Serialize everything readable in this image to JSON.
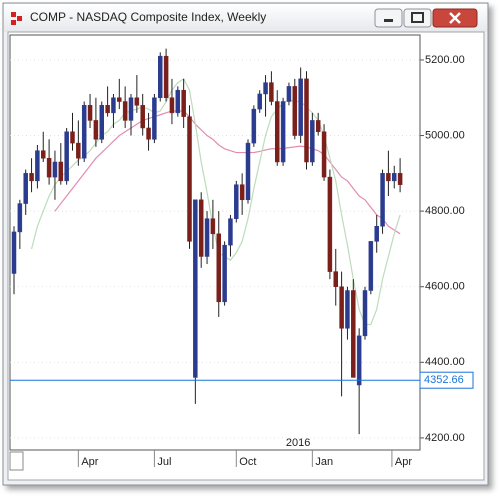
{
  "chart_data": {
    "type": "candlestick",
    "title": "COMP - NASDAQ Composite Index, Weekly",
    "up_color": "#2b3c8f",
    "down_color": "#7b1f1a",
    "ylim": [
      4168,
      5266
    ],
    "yticks": [
      {
        "value": 4200,
        "label": "4200.00"
      },
      {
        "value": 4400,
        "label": "4400.00"
      },
      {
        "value": 4600,
        "label": "4600.00"
      },
      {
        "value": 4800,
        "label": "4800.00"
      },
      {
        "value": 5000,
        "label": "5000.00"
      },
      {
        "value": 5200,
        "label": "5200.00"
      }
    ],
    "grid": true,
    "xticks": [
      {
        "value": 11,
        "label": "Apr"
      },
      {
        "value": 24,
        "label": "Jul"
      },
      {
        "value": 38,
        "label": "Oct"
      },
      {
        "value": 51,
        "label": "Jan"
      },
      {
        "value": 64.6,
        "label": "Apr"
      }
    ],
    "year_label": {
      "value": 51,
      "label": "2016"
    },
    "hline": {
      "value": 4352.66,
      "color": "#1a73d9"
    },
    "ohlc": [
      [
        4635,
        4760,
        4580,
        4745
      ],
      [
        4745,
        4830,
        4700,
        4820
      ],
      [
        4820,
        4910,
        4790,
        4900
      ],
      [
        4900,
        4940,
        4850,
        4880
      ],
      [
        4880,
        4975,
        4860,
        4960
      ],
      [
        4960,
        5010,
        4930,
        4940
      ],
      [
        4940,
        4990,
        4870,
        4890
      ],
      [
        4890,
        4960,
        4830,
        4930
      ],
      [
        4930,
        4980,
        4870,
        4880
      ],
      [
        4880,
        5020,
        4870,
        5010
      ],
      [
        5010,
        5060,
        4960,
        4980
      ],
      [
        4980,
        5040,
        4920,
        4940
      ],
      [
        4940,
        5090,
        4930,
        5080
      ],
      [
        5080,
        5110,
        5020,
        5040
      ],
      [
        5040,
        5100,
        4970,
        4990
      ],
      [
        4990,
        5090,
        4980,
        5080
      ],
      [
        5080,
        5130,
        5050,
        5060
      ],
      [
        5060,
        5110,
        5020,
        5100
      ],
      [
        5100,
        5150,
        5070,
        5090
      ],
      [
        5090,
        5130,
        5020,
        5040
      ],
      [
        5040,
        5110,
        5000,
        5100
      ],
      [
        5100,
        5160,
        5060,
        5080
      ],
      [
        5080,
        5110,
        5000,
        5020
      ],
      [
        5020,
        5060,
        4960,
        4990
      ],
      [
        4990,
        5110,
        4980,
        5100
      ],
      [
        5100,
        5220,
        5090,
        5210
      ],
      [
        5210,
        5230,
        5090,
        5100
      ],
      [
        5100,
        5150,
        5030,
        5060
      ],
      [
        5060,
        5130,
        5050,
        5120
      ],
      [
        5120,
        5150,
        5020,
        5050
      ],
      [
        5050,
        5080,
        4700,
        4720
      ],
      [
        4360,
        4830,
        4290,
        4830
      ],
      [
        4830,
        4850,
        4650,
        4680
      ],
      [
        4680,
        4800,
        4660,
        4780
      ],
      [
        4780,
        4830,
        4700,
        4740
      ],
      [
        4740,
        4800,
        4520,
        4560
      ],
      [
        4560,
        4720,
        4550,
        4710
      ],
      [
        4710,
        4790,
        4680,
        4780
      ],
      [
        4780,
        4880,
        4770,
        4870
      ],
      [
        4870,
        4900,
        4790,
        4830
      ],
      [
        4830,
        4990,
        4820,
        4980
      ],
      [
        4980,
        5080,
        4970,
        5070
      ],
      [
        5070,
        5120,
        5060,
        5110
      ],
      [
        5110,
        5160,
        5050,
        5140
      ],
      [
        5140,
        5170,
        5080,
        5090
      ],
      [
        5090,
        5120,
        4920,
        4930
      ],
      [
        4930,
        5100,
        4920,
        5090
      ],
      [
        5090,
        5140,
        5080,
        5130
      ],
      [
        5130,
        5150,
        4990,
        5000
      ],
      [
        5000,
        5180,
        4980,
        5150
      ],
      [
        5150,
        5170,
        4910,
        4930
      ],
      [
        4930,
        5060,
        4920,
        5040
      ],
      [
        5040,
        5060,
        5000,
        5010
      ],
      [
        5010,
        5030,
        4880,
        4890
      ],
      [
        4890,
        4910,
        4620,
        4640
      ],
      [
        4640,
        4700,
        4550,
        4600
      ],
      [
        4600,
        4640,
        4310,
        4490
      ],
      [
        4490,
        4600,
        4460,
        4590
      ],
      [
        4590,
        4620,
        4360,
        4360
      ],
      [
        4340,
        4490,
        4210,
        4470
      ],
      [
        4470,
        4600,
        4460,
        4590
      ],
      [
        4590,
        4720,
        4580,
        4720
      ],
      [
        4720,
        4790,
        4690,
        4760
      ],
      [
        4760,
        4910,
        4740,
        4900
      ],
      [
        4900,
        4960,
        4840,
        4880
      ],
      [
        4880,
        4920,
        4860,
        4900
      ],
      [
        4900,
        4940,
        4850,
        4870
      ]
    ],
    "series": [
      {
        "color": "#e48bb0",
        "values": [
          null,
          null,
          null,
          null,
          null,
          null,
          null,
          4800,
          4820,
          4840,
          4860,
          4880,
          4900,
          4920,
          4940,
          4955,
          4970,
          4985,
          5000,
          5010,
          5020,
          5030,
          5040,
          5045,
          5050,
          5055,
          5060,
          5065,
          5065,
          5065,
          5050,
          5030,
          5015,
          5000,
          4990,
          4975,
          4965,
          4960,
          4955,
          4955,
          4955,
          4955,
          4958,
          4962,
          4965,
          4965,
          4966,
          4968,
          4970,
          4972,
          4970,
          4965,
          4960,
          4950,
          4930,
          4910,
          4890,
          4880,
          4860,
          4840,
          4830,
          4810,
          4790,
          4780,
          4760,
          4750,
          4740
        ]
      },
      {
        "color": "#bcdcbc",
        "values": [
          null,
          null,
          null,
          4700,
          4760,
          4800,
          4840,
          4870,
          4890,
          4905,
          4920,
          4935,
          4945,
          4960,
          4980,
          5000,
          5010,
          5030,
          5040,
          5060,
          5065,
          5070,
          5075,
          5070,
          5060,
          5065,
          5090,
          5120,
          5140,
          5150,
          5120,
          5030,
          4930,
          4850,
          4760,
          4690,
          4680,
          4670,
          4690,
          4720,
          4780,
          4860,
          4930,
          5000,
          5050,
          5070,
          5085,
          5095,
          5090,
          5090,
          5075,
          5060,
          5040,
          5000,
          4940,
          4880,
          4790,
          4710,
          4620,
          4540,
          4500,
          4500,
          4540,
          4620,
          4680,
          4740,
          4790
        ]
      }
    ]
  }
}
